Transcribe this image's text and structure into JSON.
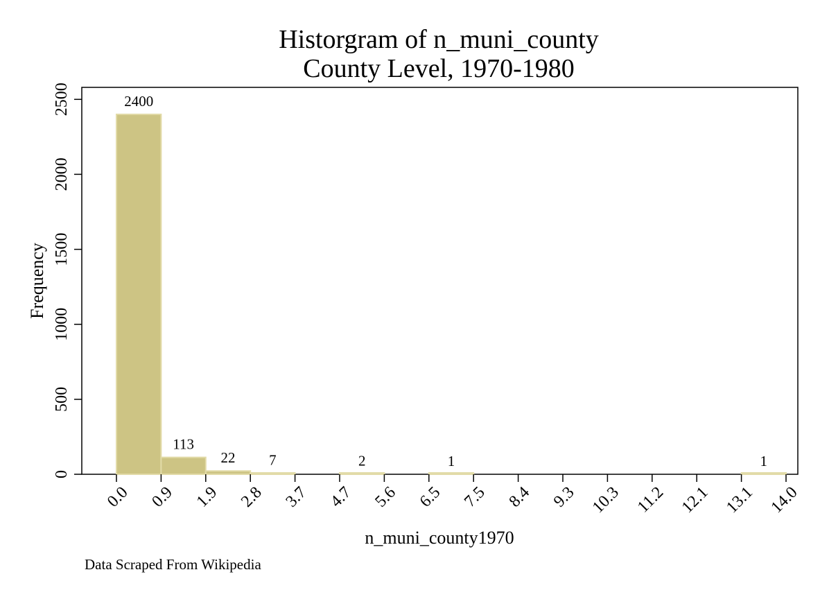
{
  "chart_data": {
    "type": "bar",
    "title": "Historgram of n_muni_county",
    "subtitle": "County Level, 1970-1980",
    "xlabel": "n_muni_county1970",
    "ylabel": "Frequency",
    "note": "Data Scraped From Wikipedia",
    "bin_edges": [
      0.0,
      0.9,
      1.9,
      2.8,
      3.7,
      4.7,
      5.6,
      6.5,
      7.5,
      8.4,
      9.3,
      10.3,
      11.2,
      12.1,
      13.1,
      14.0
    ],
    "xtick_labels": [
      "0.0",
      "0.9",
      "1.9",
      "2.8",
      "3.7",
      "4.7",
      "5.6",
      "6.5",
      "7.5",
      "8.4",
      "9.3",
      "10.3",
      "11.2",
      "12.1",
      "13.1",
      "14.0"
    ],
    "values": [
      2400,
      113,
      22,
      7,
      0,
      2,
      0,
      1,
      0,
      0,
      0,
      0,
      0,
      0,
      1
    ],
    "value_labels": [
      "2400",
      "113",
      "22",
      "7",
      "",
      "2",
      "",
      "1",
      "",
      "",
      "",
      "",
      "",
      "",
      "1"
    ],
    "yticks": [
      0,
      500,
      1000,
      1500,
      2000,
      2500
    ],
    "ylim": [
      0,
      2580
    ],
    "bar_color": "#cdc484",
    "bar_edge_color": "#e2dba8",
    "grid": false
  }
}
